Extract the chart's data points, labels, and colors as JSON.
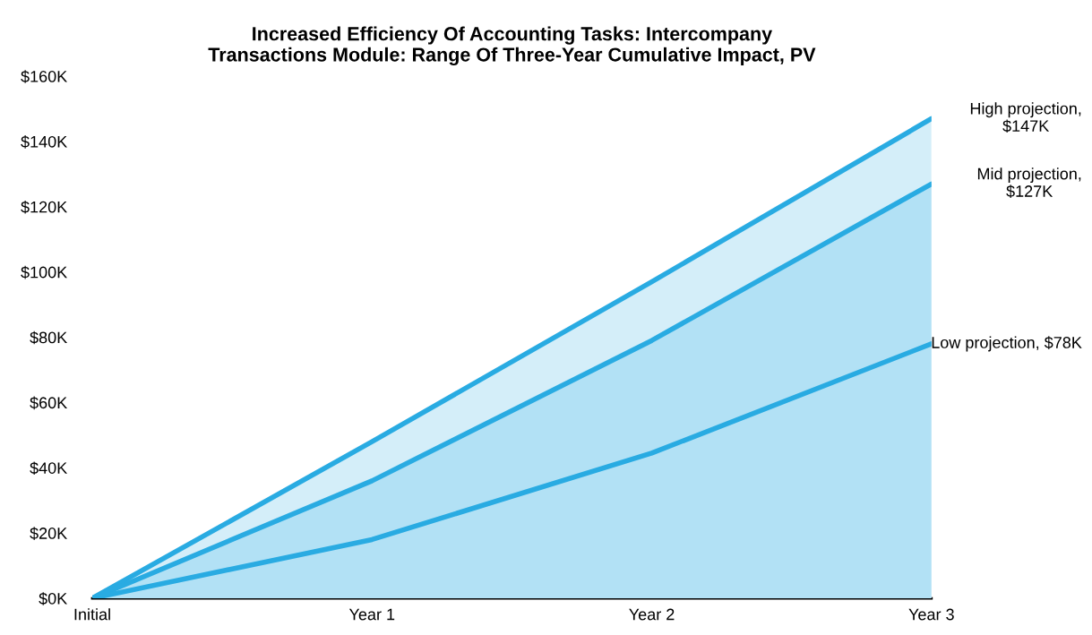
{
  "chart_data": {
    "type": "area",
    "title": "Increased Efficiency Of Accounting Tasks: Intercompany\nTransactions Module: Range Of Three-Year Cumulative Impact, PV",
    "categories": [
      "Initial",
      "Year 1",
      "Year 2",
      "Year 3"
    ],
    "series": [
      {
        "color": "#29abe2",
        "values": [
          0,
          48,
          97,
          147
        ]
      },
      {
        "color": "#29abe2",
        "values": [
          0,
          36,
          79,
          127
        ]
      },
      {
        "type": "line",
        "color": "#29abe2",
        "values": [
          0,
          18,
          44.5,
          78
        ]
      }
    ],
    "ylim": [
      0,
      160
    ],
    "yticks": [
      {
        "value": 0,
        "label": "$0K"
      },
      {
        "value": 20,
        "label": "$20K"
      },
      {
        "value": 40,
        "label": "$40K"
      },
      {
        "value": 60,
        "label": "$60K"
      },
      {
        "value": 80,
        "label": "$80K"
      },
      {
        "value": 100,
        "label": "$100K"
      },
      {
        "value": 120,
        "label": "$120K"
      },
      {
        "value": 140,
        "label": "$140K"
      },
      {
        "value": 160,
        "label": "$160K"
      }
    ],
    "annotations": [
      {
        "text": "High projection,\n$147K",
        "x": "Year 3",
        "y": 147
      },
      {
        "text": "Mid projection,\n$127K",
        "x": "Year 3",
        "y": 127
      },
      {
        "text": "Low projection, $78K",
        "x": "Year 3",
        "y": 78
      }
    ],
    "grid": false,
    "legend": false,
    "marker": "none",
    "line_style": "solid"
  }
}
